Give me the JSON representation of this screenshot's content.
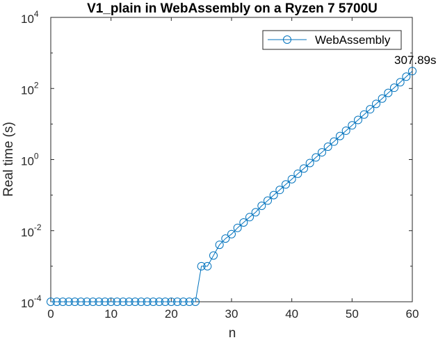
{
  "chart_data": {
    "type": "line",
    "title": "V1_plain in WebAssembly on a Ryzen 7 5700U",
    "xlabel": "n",
    "ylabel": "Real time (s)",
    "xlim": [
      0,
      60
    ],
    "ylim": [
      0.0001,
      10000
    ],
    "yscale": "log",
    "grid": false,
    "legend_position": "top-right",
    "x_ticks": [
      "0",
      "10",
      "20",
      "30",
      "40",
      "50",
      "60"
    ],
    "y_ticks": [
      {
        "base": "10",
        "exp": "-4"
      },
      {
        "base": "10",
        "exp": "-2"
      },
      {
        "base": "10",
        "exp": "0"
      },
      {
        "base": "10",
        "exp": "2"
      },
      {
        "base": "10",
        "exp": "4"
      }
    ],
    "series": [
      {
        "name": "WebAssembly",
        "color": "#0072bd",
        "marker": "circle",
        "x": [
          0,
          1,
          2,
          3,
          4,
          5,
          6,
          7,
          8,
          9,
          10,
          11,
          12,
          13,
          14,
          15,
          16,
          17,
          18,
          19,
          20,
          21,
          22,
          23,
          24,
          25,
          26,
          27,
          28,
          29,
          30,
          31,
          32,
          33,
          34,
          35,
          36,
          37,
          38,
          39,
          40,
          41,
          42,
          43,
          44,
          45,
          46,
          47,
          48,
          49,
          50,
          51,
          52,
          53,
          54,
          55,
          56,
          57,
          58,
          59,
          60
        ],
        "y": [
          0.0001,
          0.0001,
          0.0001,
          0.0001,
          0.0001,
          0.0001,
          0.0001,
          0.0001,
          0.0001,
          0.0001,
          0.0001,
          0.0001,
          0.0001,
          0.0001,
          0.0001,
          0.0001,
          0.0001,
          0.0001,
          0.0001,
          0.0001,
          0.0001,
          0.0001,
          0.0001,
          0.0001,
          0.0001,
          0.001,
          0.001,
          0.002,
          0.004,
          0.006,
          0.008,
          0.012,
          0.017,
          0.024,
          0.033,
          0.05,
          0.07,
          0.1,
          0.14,
          0.2,
          0.28,
          0.4,
          0.56,
          0.8,
          1.15,
          1.6,
          2.3,
          3.2,
          4.6,
          6.5,
          9.2,
          13,
          18.5,
          26,
          37,
          52,
          75,
          105,
          150,
          215,
          307.89
        ]
      }
    ],
    "annotations": [
      {
        "text": "307.89s",
        "x": 60,
        "y": 307.89
      }
    ]
  }
}
